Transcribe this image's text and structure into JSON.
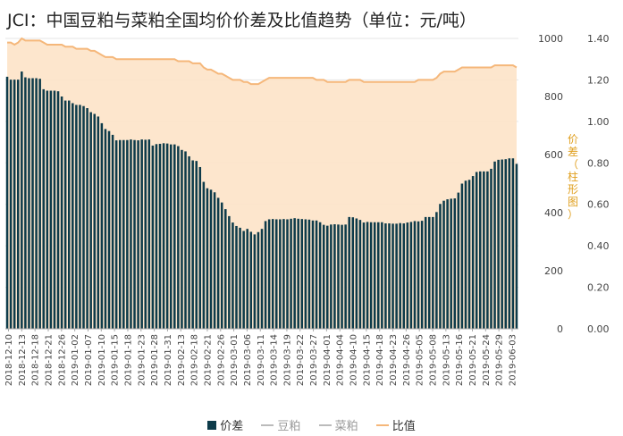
{
  "chart_data": {
    "type": "bar",
    "title": "JCI：中国豆粕与菜粕全国均价价差及比值趋势（单位：元/吨）",
    "y2label": "价差（柱形图）",
    "ylim": [
      0,
      1000
    ],
    "y2lim": [
      0,
      1.4
    ],
    "yticks": [
      "0",
      "200",
      "400",
      "600",
      "800",
      "1000"
    ],
    "y2ticks": [
      "0.00",
      "0.20",
      "0.40",
      "0.60",
      "0.80",
      "1.00",
      "1.20",
      "1.40"
    ],
    "xtick_labels": [
      "2018-12-10",
      "2018-12-13",
      "2018-12-18",
      "2018-12-21",
      "2018-12-26",
      "2019-01-02",
      "2019-01-07",
      "2019-01-10",
      "2019-01-15",
      "2019-01-18",
      "2019-01-23",
      "2019-01-28",
      "2019-01-31",
      "2019-02-13",
      "2019-02-18",
      "2019-02-21",
      "2019-02-26",
      "2019-03-01",
      "2019-03-06",
      "2019-03-11",
      "2019-03-14",
      "2019-03-19",
      "2019-03-22",
      "2019-03-27",
      "2019-04-01",
      "2019-04-04",
      "2019-04-10",
      "2019-04-15",
      "2019-04-18",
      "2019-04-23",
      "2019-04-26",
      "2019-05-05",
      "2019-05-08",
      "2019-05-13",
      "2019-05-16",
      "2019-05-21",
      "2019-05-24",
      "2019-05-29",
      "2019-06-03"
    ],
    "legend": [
      "价差",
      "豆粕",
      "菜粕",
      "比值"
    ],
    "legend_position": "bottom",
    "colors": {
      "spread": "#0d3b4a",
      "soy": "#bbbbbb",
      "rapeseed": "#bbbbbb",
      "ratio_line": "#f5b77a",
      "ratio_fill": "#fde3c8"
    },
    "series": [
      {
        "name": "价差",
        "values": [
          868,
          858,
          858,
          858,
          886,
          866,
          863,
          863,
          863,
          861,
          825,
          820,
          820,
          820,
          818,
          800,
          786,
          786,
          777,
          771,
          771,
          767,
          760,
          746,
          740,
          731,
          708,
          688,
          681,
          668,
          649,
          650,
          650,
          650,
          652,
          650,
          649,
          652,
          651,
          652,
          631,
          636,
          637,
          639,
          638,
          635,
          635,
          629,
          616,
          611,
          594,
          580,
          578,
          557,
          506,
          484,
          479,
          470,
          451,
          435,
          412,
          388,
          366,
          354,
          348,
          337,
          344,
          334,
          325,
          333,
          344,
          371,
          377,
          378,
          377,
          377,
          378,
          377,
          379,
          381,
          379,
          378,
          377,
          376,
          373,
          373,
          367,
          358,
          355,
          359,
          360,
          359,
          358,
          359,
          385,
          384,
          380,
          375,
          366,
          368,
          367,
          367,
          367,
          367,
          363,
          363,
          362,
          362,
          364,
          363,
          366,
          368,
          371,
          370,
          372,
          385,
          385,
          385,
          402,
          430,
          441,
          446,
          448,
          449,
          469,
          500,
          510,
          513,
          526,
          540,
          542,
          542,
          542,
          551,
          576,
          582,
          583,
          584,
          587,
          587,
          568
        ]
      },
      {
        "name": "比值",
        "values": [
          1.38,
          1.38,
          1.37,
          1.38,
          1.4,
          1.39,
          1.39,
          1.39,
          1.39,
          1.39,
          1.38,
          1.37,
          1.37,
          1.37,
          1.37,
          1.37,
          1.36,
          1.36,
          1.36,
          1.35,
          1.35,
          1.35,
          1.35,
          1.34,
          1.34,
          1.33,
          1.32,
          1.31,
          1.31,
          1.31,
          1.3,
          1.3,
          1.3,
          1.3,
          1.3,
          1.3,
          1.3,
          1.3,
          1.3,
          1.3,
          1.3,
          1.3,
          1.3,
          1.3,
          1.3,
          1.3,
          1.3,
          1.29,
          1.29,
          1.29,
          1.29,
          1.28,
          1.28,
          1.28,
          1.26,
          1.25,
          1.25,
          1.24,
          1.23,
          1.23,
          1.22,
          1.21,
          1.2,
          1.2,
          1.2,
          1.19,
          1.19,
          1.18,
          1.18,
          1.18,
          1.19,
          1.2,
          1.21,
          1.21,
          1.21,
          1.21,
          1.21,
          1.21,
          1.21,
          1.21,
          1.21,
          1.21,
          1.21,
          1.21,
          1.21,
          1.2,
          1.2,
          1.2,
          1.19,
          1.19,
          1.19,
          1.19,
          1.19,
          1.19,
          1.2,
          1.2,
          1.2,
          1.2,
          1.19,
          1.19,
          1.19,
          1.19,
          1.19,
          1.19,
          1.19,
          1.19,
          1.19,
          1.19,
          1.19,
          1.19,
          1.19,
          1.19,
          1.19,
          1.2,
          1.2,
          1.2,
          1.2,
          1.2,
          1.21,
          1.23,
          1.24,
          1.24,
          1.24,
          1.24,
          1.25,
          1.26,
          1.26,
          1.26,
          1.26,
          1.26,
          1.26,
          1.26,
          1.26,
          1.26,
          1.27,
          1.27,
          1.27,
          1.27,
          1.27,
          1.27,
          1.26
        ]
      }
    ]
  }
}
